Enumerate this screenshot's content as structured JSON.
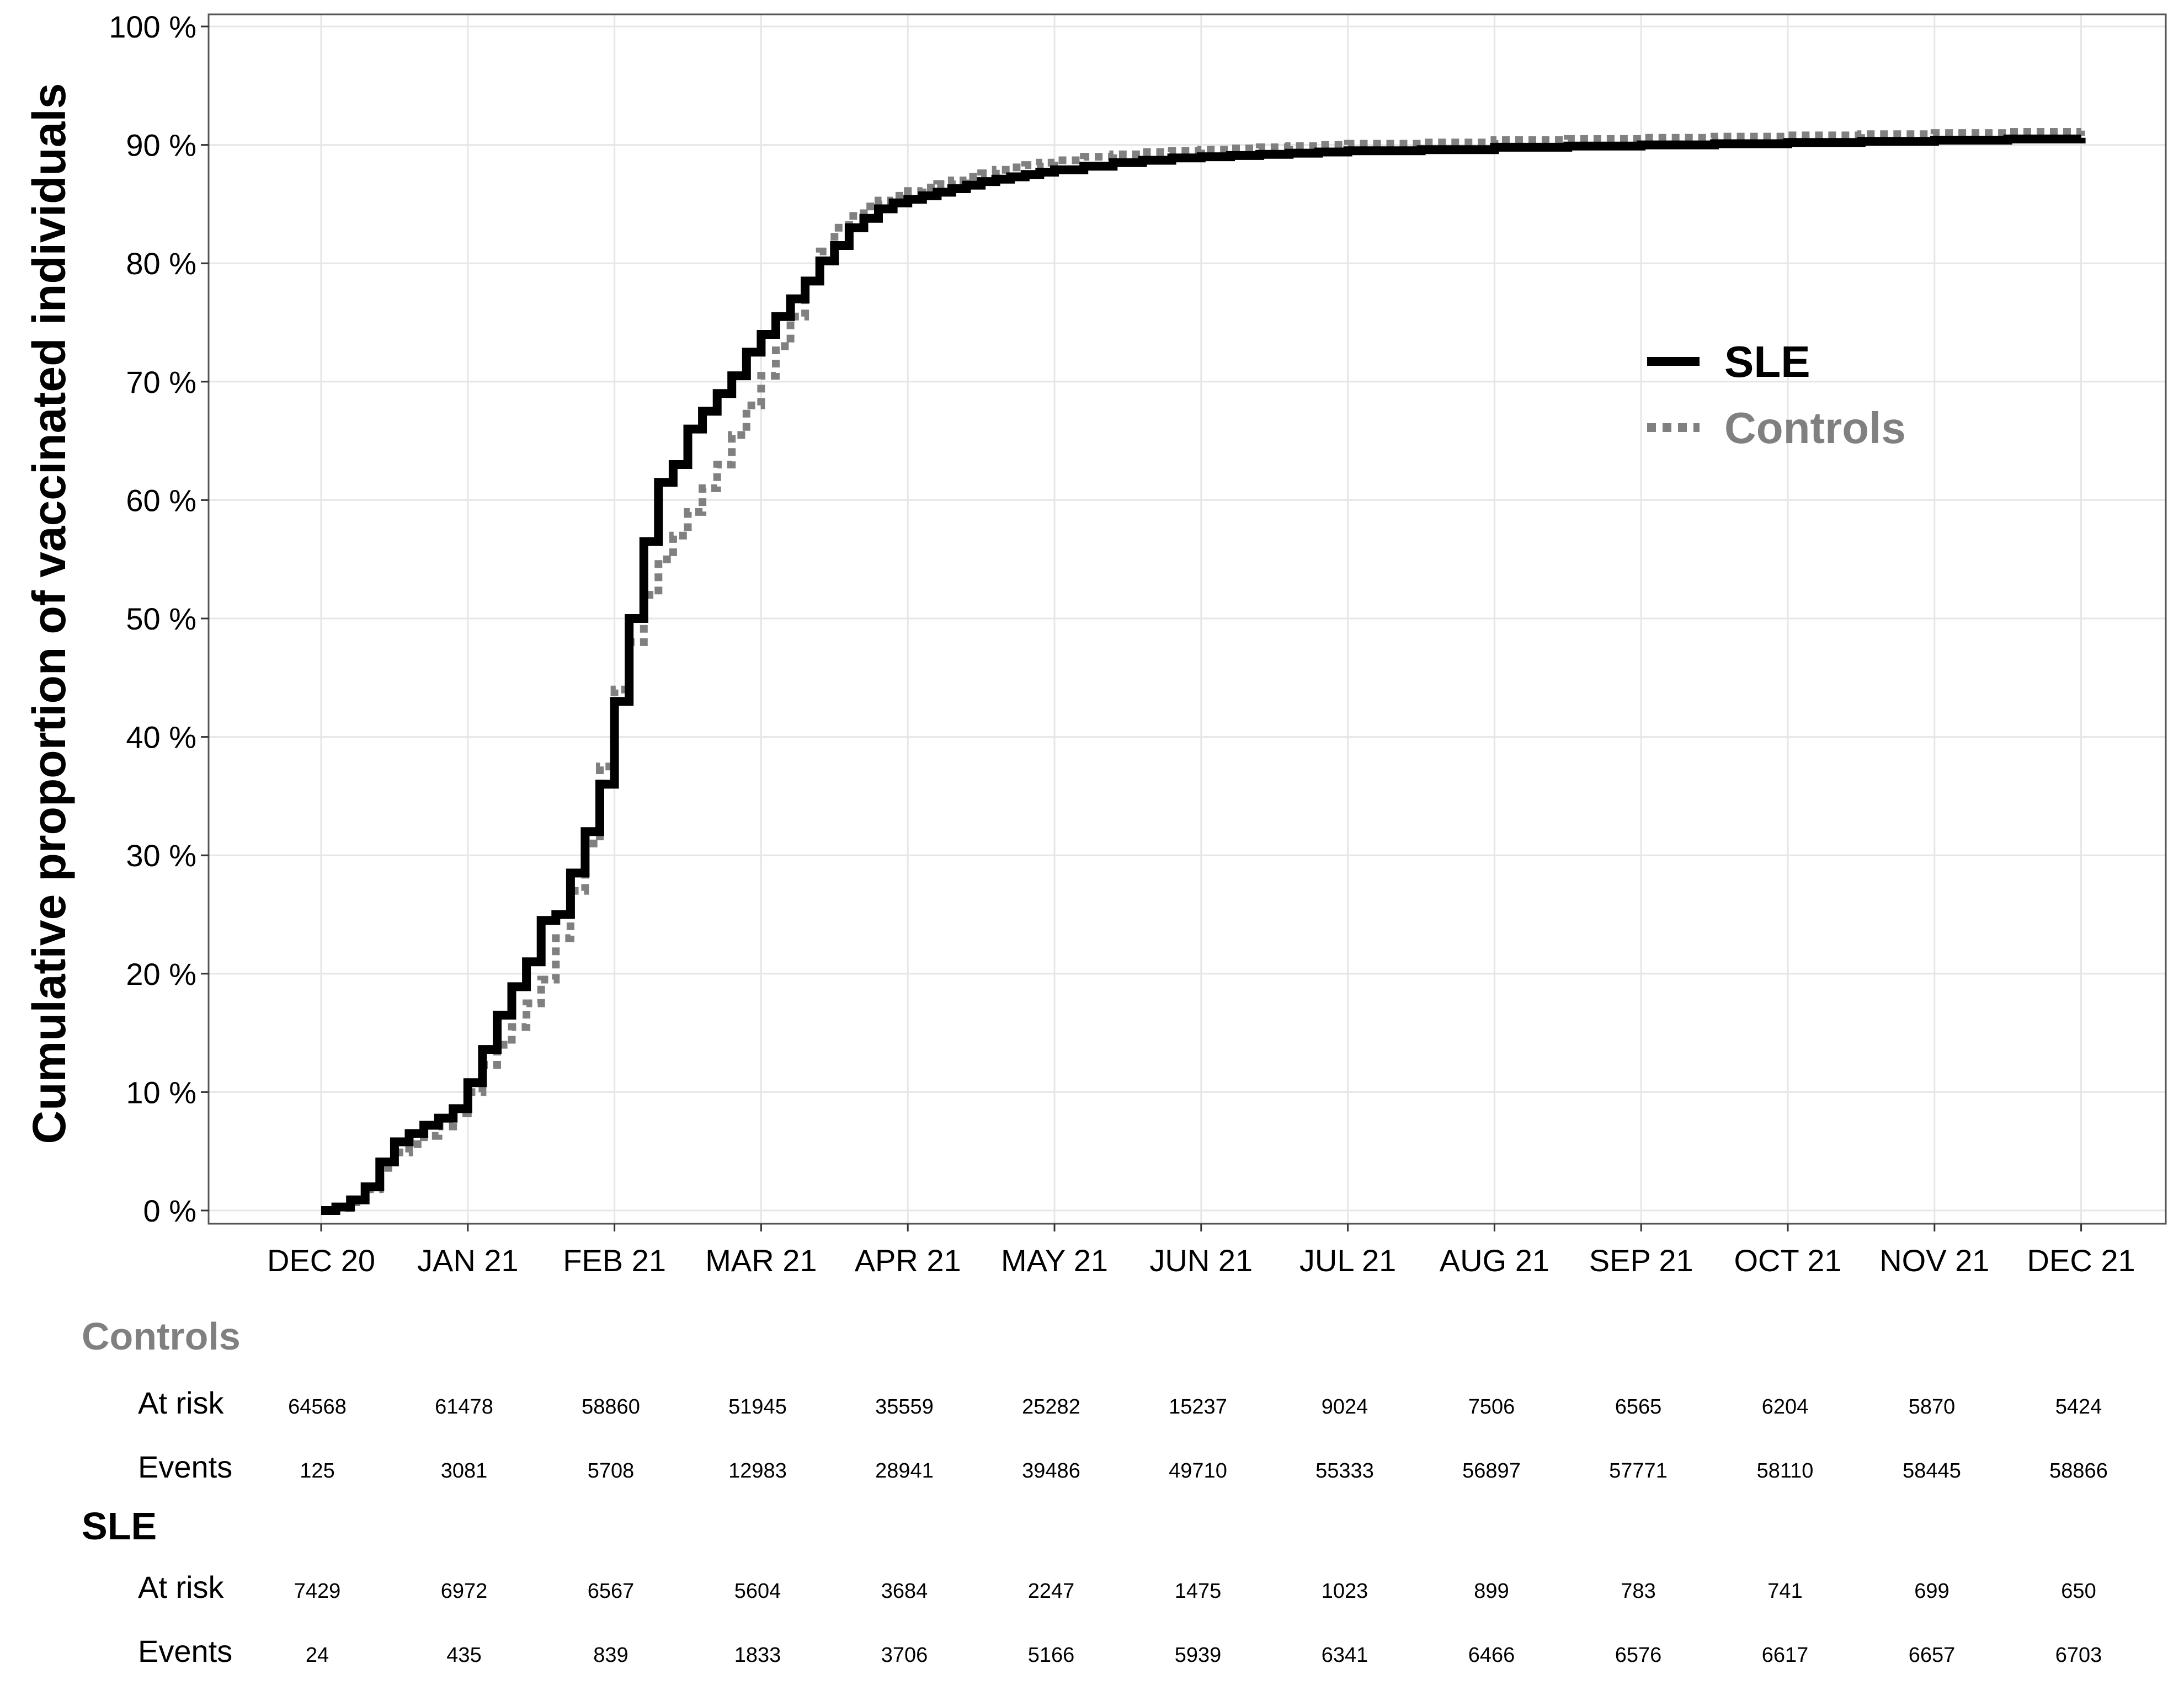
{
  "chart_data": {
    "type": "line",
    "title": "",
    "xlabel": "",
    "ylabel": "Cumulative proportion of vaccinated individuals",
    "ylim": [
      0,
      100
    ],
    "y_ticks": [
      "0 %",
      "10 %",
      "20 %",
      "30 %",
      "40 %",
      "50 %",
      "60 %",
      "70 %",
      "80 %",
      "90 %",
      "100 %"
    ],
    "x_ticks": [
      "DEC 20",
      "JAN 21",
      "FEB 21",
      "MAR 21",
      "APR 21",
      "MAY 21",
      "JUN 21",
      "JUL 21",
      "AUG 21",
      "SEP 21",
      "OCT 21",
      "NOV 21",
      "DEC 21"
    ],
    "grid": true,
    "legend_position": "top-right",
    "series": [
      {
        "name": "SLE",
        "style": "solid",
        "color": "#000000",
        "x": [
          0.0,
          0.1,
          0.2,
          0.3,
          0.4,
          0.5,
          0.6,
          0.7,
          0.8,
          0.9,
          1.0,
          1.1,
          1.2,
          1.3,
          1.4,
          1.5,
          1.6,
          1.7,
          1.8,
          1.9,
          2.0,
          2.1,
          2.2,
          2.3,
          2.4,
          2.5,
          2.6,
          2.7,
          2.8,
          2.9,
          3.0,
          3.1,
          3.2,
          3.3,
          3.4,
          3.5,
          3.6,
          3.7,
          3.8,
          3.9,
          4.0,
          4.1,
          4.2,
          4.3,
          4.4,
          4.5,
          4.6,
          4.7,
          4.8,
          4.9,
          5.0,
          5.2,
          5.4,
          5.6,
          5.8,
          6.0,
          6.2,
          6.4,
          6.6,
          6.8,
          7.0,
          7.5,
          8.0,
          8.5,
          9.0,
          9.5,
          10.0,
          10.5,
          11.0,
          11.5,
          12.0
        ],
        "y": [
          0.0,
          0.3,
          0.9,
          2.0,
          4.1,
          5.8,
          6.5,
          7.2,
          7.8,
          8.6,
          10.8,
          13.6,
          16.5,
          18.9,
          21.0,
          24.5,
          25.0,
          28.5,
          32.0,
          36.0,
          43.0,
          50.0,
          56.5,
          61.5,
          63.0,
          66.0,
          67.5,
          69.0,
          70.5,
          72.5,
          74.0,
          75.5,
          77.0,
          78.5,
          80.2,
          81.5,
          83.0,
          83.8,
          84.6,
          85.1,
          85.4,
          85.7,
          86.0,
          86.3,
          86.6,
          86.9,
          87.1,
          87.3,
          87.5,
          87.7,
          87.9,
          88.2,
          88.5,
          88.7,
          88.9,
          89.0,
          89.1,
          89.2,
          89.3,
          89.4,
          89.5,
          89.6,
          89.8,
          89.9,
          90.0,
          90.1,
          90.2,
          90.3,
          90.4,
          90.5,
          90.6
        ]
      },
      {
        "name": "Controls",
        "style": "dotted",
        "color": "#808080",
        "x": [
          0.0,
          0.1,
          0.2,
          0.3,
          0.4,
          0.5,
          0.6,
          0.7,
          0.8,
          0.9,
          1.0,
          1.1,
          1.2,
          1.3,
          1.4,
          1.5,
          1.6,
          1.7,
          1.8,
          1.9,
          2.0,
          2.1,
          2.2,
          2.3,
          2.4,
          2.5,
          2.6,
          2.7,
          2.8,
          2.9,
          3.0,
          3.1,
          3.2,
          3.3,
          3.4,
          3.5,
          3.6,
          3.7,
          3.8,
          3.9,
          4.0,
          4.1,
          4.2,
          4.3,
          4.4,
          4.5,
          4.6,
          4.7,
          4.8,
          4.9,
          5.0,
          5.2,
          5.4,
          5.6,
          5.8,
          6.0,
          6.2,
          6.4,
          6.6,
          6.8,
          7.0,
          7.5,
          8.0,
          8.5,
          9.0,
          9.5,
          10.0,
          10.5,
          11.0,
          11.5,
          12.0
        ],
        "y": [
          0.0,
          0.2,
          0.7,
          1.8,
          3.6,
          4.9,
          5.6,
          6.3,
          7.1,
          8.2,
          10.0,
          12.3,
          14.0,
          15.5,
          17.5,
          19.5,
          23.0,
          27.0,
          31.0,
          37.5,
          44.0,
          48.0,
          52.0,
          55.0,
          57.0,
          59.0,
          61.0,
          63.0,
          65.5,
          68.0,
          70.5,
          73.0,
          75.5,
          78.5,
          81.0,
          83.0,
          84.0,
          84.8,
          85.3,
          85.7,
          86.1,
          86.4,
          86.7,
          87.0,
          87.3,
          87.6,
          87.9,
          88.1,
          88.3,
          88.5,
          88.7,
          89.0,
          89.2,
          89.4,
          89.5,
          89.6,
          89.7,
          89.8,
          89.9,
          90.0,
          90.1,
          90.2,
          90.4,
          90.5,
          90.6,
          90.7,
          90.8,
          90.9,
          91.0,
          91.1,
          91.2
        ]
      }
    ]
  },
  "risk_table": {
    "groups": [
      {
        "name": "Controls",
        "color": "#808080",
        "rows": [
          {
            "label": "At risk",
            "values": [
              "64568",
              "61478",
              "58860",
              "51945",
              "35559",
              "25282",
              "15237",
              "9024",
              "7506",
              "6565",
              "6204",
              "5870",
              "5424"
            ]
          },
          {
            "label": "Events",
            "values": [
              "125",
              "3081",
              "5708",
              "12983",
              "28941",
              "39486",
              "49710",
              "55333",
              "56897",
              "57771",
              "58110",
              "58445",
              "58866"
            ]
          }
        ]
      },
      {
        "name": "SLE",
        "color": "#000000",
        "rows": [
          {
            "label": "At risk",
            "values": [
              "7429",
              "6972",
              "6567",
              "5604",
              "3684",
              "2247",
              "1475",
              "1023",
              "899",
              "783",
              "741",
              "699",
              "650"
            ]
          },
          {
            "label": "Events",
            "values": [
              "24",
              "435",
              "839",
              "1833",
              "3706",
              "5166",
              "5939",
              "6341",
              "6466",
              "6576",
              "6617",
              "6657",
              "6703"
            ]
          }
        ]
      }
    ]
  }
}
